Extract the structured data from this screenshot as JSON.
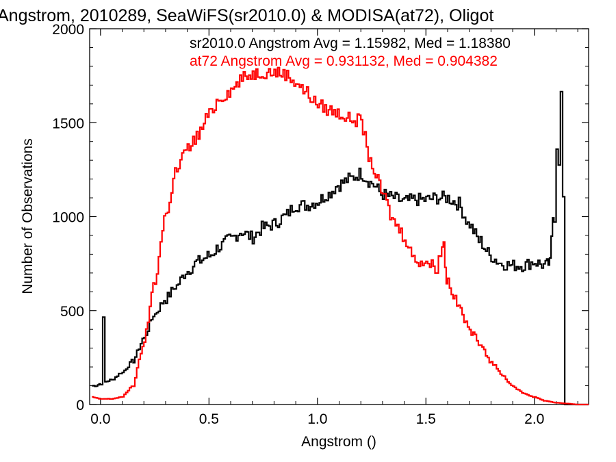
{
  "chart_data": {
    "type": "line",
    "title": "Angstrom, 2010289, SeaWiFS(sr2010.0) & MODISA(at72), Oligot",
    "xlabel": "Angstrom ()",
    "ylabel": "Number of Observations",
    "xlim": [
      -0.05,
      2.25
    ],
    "ylim": [
      0,
      2000
    ],
    "x_ticks": [
      0.0,
      0.5,
      1.0,
      1.5,
      2.0
    ],
    "x_tick_labels": [
      "0.0",
      "0.5",
      "1.0",
      "1.5",
      "2.0"
    ],
    "y_ticks": [
      0,
      500,
      1000,
      1500,
      2000
    ],
    "y_tick_labels": [
      "0",
      "500",
      "1000",
      "1500",
      "2000"
    ],
    "grid": false,
    "step": true,
    "annotations": [
      {
        "text": "sr2010.0 Angstrom Avg = 1.15982, Med = 1.18380",
        "color": "#000000"
      },
      {
        "text": "at72 Angstrom Avg = 0.931132, Med = 0.904382",
        "color": "#ff0000"
      }
    ],
    "series": [
      {
        "color": "#000000",
        "x": [
          -0.04,
          -0.02,
          0.0,
          0.01,
          0.02,
          0.05,
          0.1,
          0.15,
          0.2,
          0.25,
          0.3,
          0.35,
          0.4,
          0.45,
          0.5,
          0.55,
          0.6,
          0.65,
          0.7,
          0.75,
          0.8,
          0.85,
          0.9,
          0.95,
          1.0,
          1.05,
          1.1,
          1.15,
          1.2,
          1.25,
          1.3,
          1.35,
          1.4,
          1.45,
          1.5,
          1.55,
          1.6,
          1.65,
          1.7,
          1.75,
          1.8,
          1.85,
          1.9,
          1.95,
          2.0,
          2.05,
          2.07,
          2.09,
          2.1,
          2.11,
          2.12,
          2.13,
          2.14,
          2.15,
          2.25
        ],
        "y": [
          100,
          100,
          110,
          450,
          120,
          130,
          170,
          230,
          350,
          480,
          560,
          630,
          710,
          760,
          790,
          840,
          880,
          920,
          890,
          940,
          960,
          1000,
          1060,
          1060,
          1080,
          1120,
          1170,
          1200,
          1230,
          1180,
          1120,
          1100,
          1080,
          1090,
          1090,
          1100,
          1100,
          1070,
          960,
          870,
          790,
          750,
          740,
          740,
          760,
          740,
          750,
          1000,
          1380,
          1300,
          1650,
          1100,
          0,
          0,
          0
        ]
      },
      {
        "color": "#ff0000",
        "x": [
          -0.04,
          0.0,
          0.05,
          0.1,
          0.15,
          0.2,
          0.25,
          0.3,
          0.35,
          0.4,
          0.45,
          0.5,
          0.55,
          0.6,
          0.65,
          0.7,
          0.75,
          0.8,
          0.85,
          0.9,
          0.95,
          1.0,
          1.05,
          1.1,
          1.15,
          1.2,
          1.25,
          1.3,
          1.35,
          1.4,
          1.45,
          1.5,
          1.55,
          1.58,
          1.6,
          1.65,
          1.7,
          1.75,
          1.8,
          1.85,
          1.9,
          1.95,
          2.0,
          2.05,
          2.1,
          2.15,
          2.2,
          2.25
        ],
        "y": [
          40,
          30,
          30,
          40,
          100,
          320,
          650,
          1000,
          1240,
          1360,
          1430,
          1540,
          1630,
          1670,
          1730,
          1760,
          1770,
          1770,
          1760,
          1720,
          1660,
          1600,
          1570,
          1550,
          1520,
          1510,
          1280,
          1130,
          980,
          900,
          770,
          760,
          730,
          850,
          660,
          530,
          400,
          330,
          230,
          160,
          100,
          60,
          40,
          20,
          10,
          5,
          0,
          0
        ]
      }
    ]
  }
}
